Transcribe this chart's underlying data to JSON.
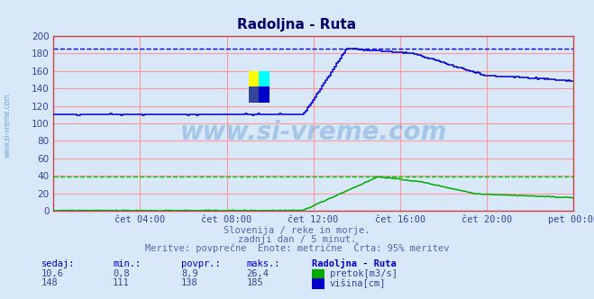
{
  "title": "Radoljna - Ruta",
  "bg_color": "#d8e8f8",
  "plot_bg_color": "#d8e8f8",
  "grid_color_major": "#ff9999",
  "x_labels": [
    "čet 04:00",
    "čet 08:00",
    "čet 12:00",
    "čet 16:00",
    "čet 20:00",
    "pet 00:00"
  ],
  "x_ticks": [
    4,
    8,
    12,
    16,
    20,
    24
  ],
  "ylim": [
    0,
    200
  ],
  "y_ticks": [
    0,
    20,
    40,
    60,
    80,
    100,
    120,
    140,
    160,
    180,
    200
  ],
  "pretok_color": "#00aa00",
  "visina_color": "#0000cc",
  "pretok_max_line_color": "#00cc00",
  "visina_max_line_color": "#0000ff",
  "watermark": "www.si-vreme.com",
  "watermark_color": "#4488cc",
  "subtitle1": "Slovenija / reke in morje.",
  "subtitle2": "zadnji dan / 5 minut.",
  "subtitle3": "Meritve: povprečne  Enote: metrične  Črta: 95% meritev",
  "subtitle_color": "#5566aa",
  "table_header_color": "#0000cc",
  "table_value_color": "#334499",
  "sedaj_label": "sedaj:",
  "min_label": "min.:",
  "povpr_label": "povpr.:",
  "maks_label": "maks.:",
  "station_label": "Radoljna - Ruta",
  "pretok_label": "pretok[m3/s]",
  "visina_label": "višina[cm]",
  "pretok_sedaj": "10,6",
  "pretok_min": "0,8",
  "pretok_povpr": "8,9",
  "pretok_maks": "26,4",
  "visina_sedaj": "148",
  "visina_min": "111",
  "visina_povpr": "138",
  "visina_maks": "185",
  "visina_max_line_y": 185,
  "pretok_max_line_y_scaled": 39.6,
  "left_label": "www.si-vreme.com"
}
